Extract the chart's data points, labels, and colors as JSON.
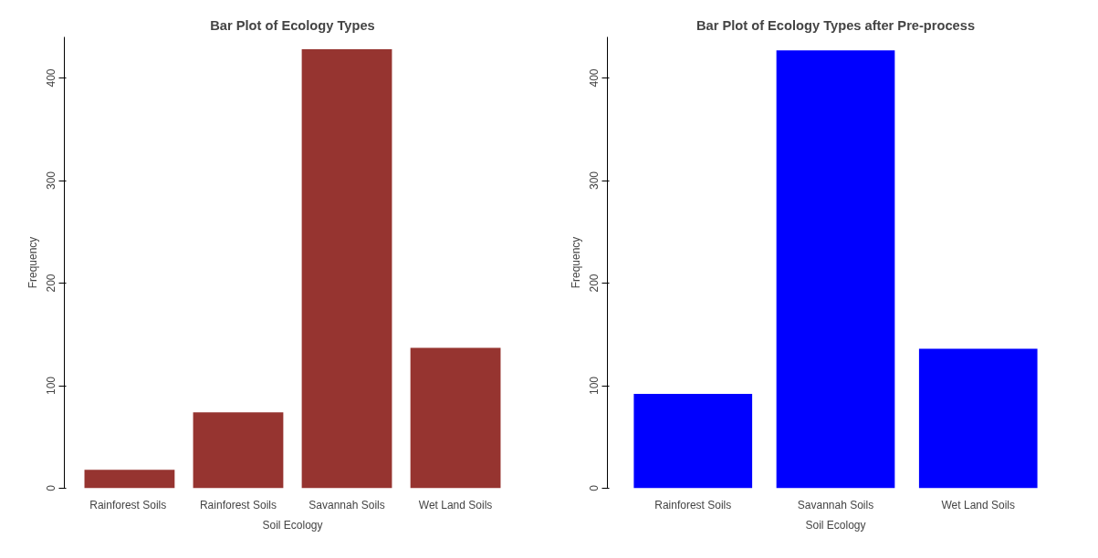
{
  "chart_data": [
    {
      "type": "bar",
      "title": "Bar Plot of Ecology Types",
      "xlabel": "Soil Ecology",
      "ylabel": "Frequency",
      "categories": [
        "Rainforest  Soils",
        "Rainforest Soils",
        "Savannah Soils",
        "Wet Land Soils"
      ],
      "values": [
        18,
        74,
        428,
        137
      ],
      "color": "#963430",
      "ylim": [
        0,
        440
      ],
      "yticks": [
        0,
        100,
        200,
        300,
        400
      ],
      "grid": false
    },
    {
      "type": "bar",
      "title": "Bar Plot of Ecology Types after Pre-process",
      "xlabel": "Soil Ecology",
      "ylabel": "Frequency",
      "categories": [
        "Rainforest Soils",
        "Savannah Soils",
        "Wet Land Soils"
      ],
      "values": [
        92,
        427,
        136
      ],
      "color": "#0000ff",
      "ylim": [
        0,
        440
      ],
      "yticks": [
        0,
        100,
        200,
        300,
        400
      ],
      "grid": false
    }
  ]
}
